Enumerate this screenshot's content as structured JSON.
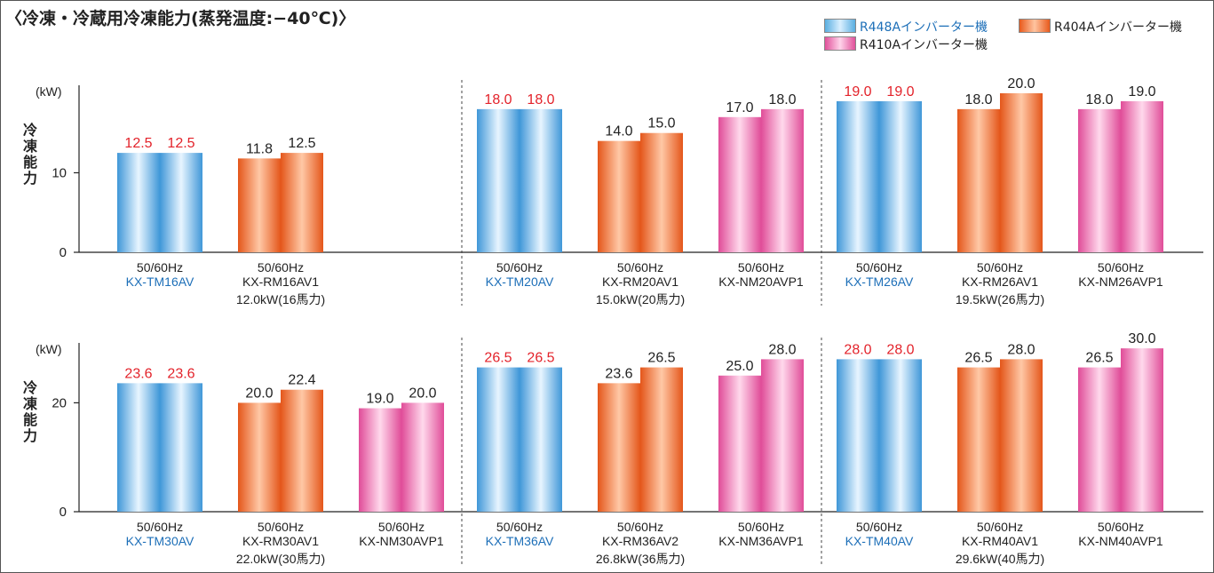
{
  "title": "〈冷凍・冷蔵用冷凍能力(蒸発温度:−40℃)〉",
  "colors": {
    "r448a": "#4aa3dc",
    "r404a": "#e8642a",
    "r410a": "#e65aa0",
    "highlight_value": "#e3222a",
    "model_blue": "#1d6fb8"
  },
  "legend": [
    {
      "key": "r448a",
      "label": "R448Aインバーター機",
      "text_color": "#1d6fb8"
    },
    {
      "key": "r404a",
      "label": "R404Aインバーター機",
      "text_color": "#222222"
    },
    {
      "key": "r410a",
      "label": "R410Aインバーター機",
      "text_color": "#222222"
    }
  ],
  "chart_data": [
    {
      "type": "bar",
      "unit_label": "(kW)",
      "ylabel": "冷凍能力",
      "yticks": [
        0,
        10
      ],
      "ylim": [
        0,
        21
      ],
      "groups": [
        {
          "class_label": "12.0kW(16馬力)",
          "models": [
            {
              "model": "KX-TM16AV",
              "series": "r448a",
              "freq": "50/60Hz",
              "values": [
                12.5,
                12.5
              ]
            },
            {
              "model": "KX-RM16AV1",
              "series": "r404a",
              "freq": "50/60Hz",
              "values": [
                11.8,
                12.5
              ]
            }
          ]
        },
        {
          "class_label": "15.0kW(20馬力)",
          "models": [
            {
              "model": "KX-TM20AV",
              "series": "r448a",
              "freq": "50/60Hz",
              "values": [
                18.0,
                18.0
              ]
            },
            {
              "model": "KX-RM20AV1",
              "series": "r404a",
              "freq": "50/60Hz",
              "values": [
                14.0,
                15.0
              ]
            },
            {
              "model": "KX-NM20AVP1",
              "series": "r410a",
              "freq": "50/60Hz",
              "values": [
                17.0,
                18.0
              ]
            }
          ]
        },
        {
          "class_label": "19.5kW(26馬力)",
          "models": [
            {
              "model": "KX-TM26AV",
              "series": "r448a",
              "freq": "50/60Hz",
              "values": [
                19.0,
                19.0
              ]
            },
            {
              "model": "KX-RM26AV1",
              "series": "r404a",
              "freq": "50/60Hz",
              "values": [
                18.0,
                20.0
              ]
            },
            {
              "model": "KX-NM26AVP1",
              "series": "r410a",
              "freq": "50/60Hz",
              "values": [
                18.0,
                19.0
              ]
            }
          ]
        }
      ]
    },
    {
      "type": "bar",
      "unit_label": "(kW)",
      "ylabel": "冷凍能力",
      "yticks": [
        0,
        20
      ],
      "ylim": [
        0,
        31
      ],
      "groups": [
        {
          "class_label": "22.0kW(30馬力)",
          "models": [
            {
              "model": "KX-TM30AV",
              "series": "r448a",
              "freq": "50/60Hz",
              "values": [
                23.6,
                23.6
              ]
            },
            {
              "model": "KX-RM30AV1",
              "series": "r404a",
              "freq": "50/60Hz",
              "values": [
                20.0,
                22.4
              ]
            },
            {
              "model": "KX-NM30AVP1",
              "series": "r410a",
              "freq": "50/60Hz",
              "values": [
                19.0,
                20.0
              ]
            }
          ]
        },
        {
          "class_label": "26.8kW(36馬力)",
          "models": [
            {
              "model": "KX-TM36AV",
              "series": "r448a",
              "freq": "50/60Hz",
              "values": [
                26.5,
                26.5
              ]
            },
            {
              "model": "KX-RM36AV2",
              "series": "r404a",
              "freq": "50/60Hz",
              "values": [
                23.6,
                26.5
              ]
            },
            {
              "model": "KX-NM36AVP1",
              "series": "r410a",
              "freq": "50/60Hz",
              "values": [
                25.0,
                28.0
              ]
            }
          ]
        },
        {
          "class_label": "29.6kW(40馬力)",
          "models": [
            {
              "model": "KX-TM40AV",
              "series": "r448a",
              "freq": "50/60Hz",
              "values": [
                28.0,
                28.0
              ]
            },
            {
              "model": "KX-RM40AV1",
              "series": "r404a",
              "freq": "50/60Hz",
              "values": [
                26.5,
                28.0
              ]
            },
            {
              "model": "KX-NM40AVP1",
              "series": "r410a",
              "freq": "50/60Hz",
              "values": [
                26.5,
                30.0
              ]
            }
          ]
        }
      ]
    }
  ]
}
